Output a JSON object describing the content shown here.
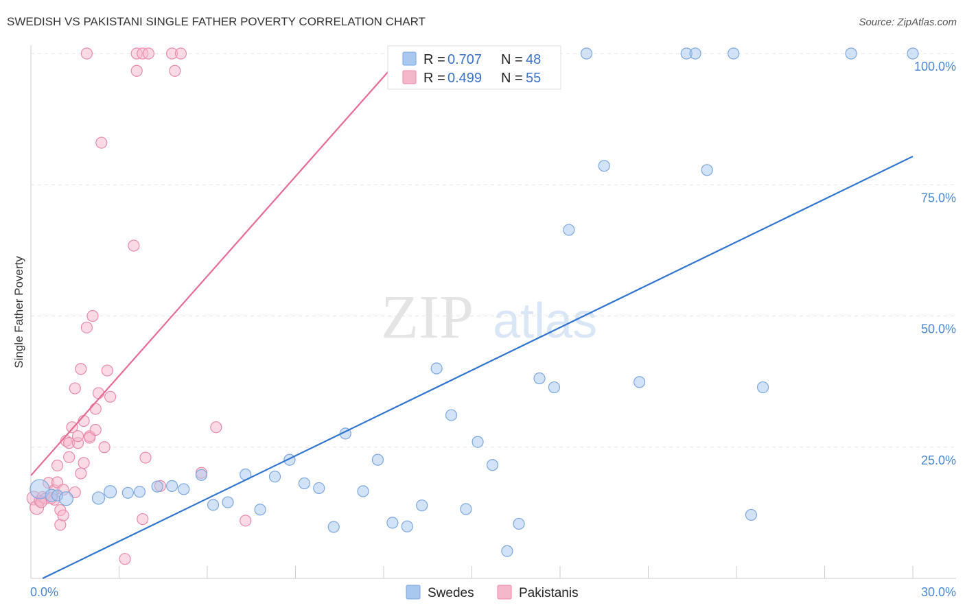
{
  "title": "SWEDISH VS PAKISTANI SINGLE FATHER POVERTY CORRELATION CHART",
  "source": "Source: ZipAtlas.com",
  "watermark": {
    "zip": "ZIP",
    "atlas": "atlas"
  },
  "chart_data": {
    "type": "scatter",
    "xlabel": "",
    "ylabel": "Single Father Poverty",
    "xlim": [
      0,
      30
    ],
    "ylim": [
      0,
      100
    ],
    "x_tick_labels": [
      "0.0%",
      "30.0%"
    ],
    "y_tick_labels": [
      "25.0%",
      "50.0%",
      "75.0%",
      "100.0%"
    ],
    "y_ticks": [
      25,
      50,
      75,
      100
    ],
    "legend": [
      {
        "name": "Swedes",
        "r_label": "R =",
        "r_value": "0.707",
        "n_label": "N =",
        "n_value": "48",
        "color": "#a8c8f0",
        "stroke": "#7aa6df"
      },
      {
        "name": "Pakistanis",
        "r_label": "R =",
        "r_value": "0.499",
        "n_label": "N =",
        "n_value": "55",
        "color": "#f5b8cb",
        "stroke": "#e98aa8"
      }
    ],
    "series": [
      {
        "name": "Swedes",
        "color": "#a8c8f0",
        "stroke": "#7aa6df",
        "line_color": "#2f74d0",
        "trend": [
          [
            0.4,
            0.0
          ],
          [
            30.0,
            80.4
          ]
        ],
        "points": [
          [
            0.3,
            17.0,
            14
          ],
          [
            0.7,
            15.8,
            9
          ],
          [
            0.9,
            15.8,
            8
          ],
          [
            1.2,
            15.2,
            10
          ],
          [
            2.3,
            15.3,
            9
          ],
          [
            2.7,
            16.5,
            9
          ],
          [
            3.3,
            16.3,
            8
          ],
          [
            3.7,
            16.5,
            8
          ],
          [
            4.3,
            17.5,
            8
          ],
          [
            4.8,
            17.6,
            8
          ],
          [
            5.2,
            17.0,
            8
          ],
          [
            5.8,
            19.7,
            8
          ],
          [
            6.2,
            14.0,
            8
          ],
          [
            6.7,
            14.5,
            8
          ],
          [
            7.3,
            19.8,
            8
          ],
          [
            7.8,
            13.1,
            8
          ],
          [
            8.3,
            19.4,
            8
          ],
          [
            8.8,
            22.6,
            8
          ],
          [
            9.3,
            18.1,
            8
          ],
          [
            9.8,
            17.2,
            8
          ],
          [
            10.3,
            9.8,
            8
          ],
          [
            10.7,
            27.6,
            8
          ],
          [
            11.3,
            16.6,
            8
          ],
          [
            11.8,
            22.6,
            8
          ],
          [
            12.3,
            10.6,
            8
          ],
          [
            12.8,
            9.9,
            8
          ],
          [
            13.3,
            13.9,
            8
          ],
          [
            13.8,
            40.0,
            8
          ],
          [
            14.3,
            31.1,
            8
          ],
          [
            14.8,
            13.2,
            8
          ],
          [
            15.2,
            26.0,
            8
          ],
          [
            15.7,
            21.6,
            8
          ],
          [
            16.2,
            5.2,
            8
          ],
          [
            16.6,
            10.4,
            8
          ],
          [
            17.3,
            38.1,
            8
          ],
          [
            17.8,
            36.4,
            8
          ],
          [
            18.3,
            66.4,
            8
          ],
          [
            18.9,
            100.0,
            8
          ],
          [
            19.5,
            78.6,
            8
          ],
          [
            20.7,
            37.4,
            8
          ],
          [
            22.3,
            100.0,
            8
          ],
          [
            22.6,
            100.0,
            8
          ],
          [
            23.0,
            77.8,
            8
          ],
          [
            23.9,
            100.0,
            8
          ],
          [
            24.5,
            12.1,
            8
          ],
          [
            24.9,
            36.4,
            8
          ],
          [
            27.9,
            100.0,
            8
          ],
          [
            30.0,
            100.0,
            8
          ]
        ]
      },
      {
        "name": "Pakistanis",
        "color": "#f5b8cb",
        "stroke": "#e98aa8",
        "line_color": "#e56b91",
        "trend": [
          [
            0.0,
            19.6
          ],
          [
            12.7,
            100.0
          ]
        ],
        "points": [
          [
            0.1,
            15.3,
            10
          ],
          [
            0.2,
            13.5,
            10
          ],
          [
            0.3,
            14.8,
            8
          ],
          [
            0.4,
            15.5,
            8
          ],
          [
            0.5,
            15.2,
            8
          ],
          [
            0.6,
            18.2,
            8
          ],
          [
            0.8,
            16.8,
            8
          ],
          [
            0.8,
            15.0,
            8
          ],
          [
            0.9,
            21.5,
            8
          ],
          [
            0.9,
            18.3,
            8
          ],
          [
            1.0,
            10.2,
            8
          ],
          [
            1.0,
            13.0,
            8
          ],
          [
            1.1,
            12.0,
            8
          ],
          [
            1.2,
            26.2,
            8
          ],
          [
            1.3,
            25.8,
            8
          ],
          [
            1.3,
            23.1,
            8
          ],
          [
            1.4,
            28.8,
            8
          ],
          [
            1.5,
            36.2,
            8
          ],
          [
            1.5,
            16.4,
            8
          ],
          [
            1.6,
            25.8,
            8
          ],
          [
            1.6,
            27.1,
            8
          ],
          [
            1.7,
            20.0,
            8
          ],
          [
            1.7,
            39.9,
            8
          ],
          [
            1.8,
            30.0,
            8
          ],
          [
            1.8,
            22.0,
            8
          ],
          [
            1.9,
            47.8,
            8
          ],
          [
            2.0,
            27.1,
            8
          ],
          [
            2.0,
            26.8,
            8
          ],
          [
            2.1,
            50.0,
            8
          ],
          [
            2.2,
            32.3,
            8
          ],
          [
            2.2,
            28.3,
            8
          ],
          [
            2.3,
            35.3,
            8
          ],
          [
            2.4,
            83.0,
            8
          ],
          [
            2.5,
            25.0,
            8
          ],
          [
            2.6,
            39.6,
            8
          ],
          [
            2.7,
            34.6,
            8
          ],
          [
            3.2,
            3.7,
            8
          ],
          [
            3.5,
            63.4,
            8
          ],
          [
            3.6,
            96.7,
            8
          ],
          [
            3.6,
            100.0,
            8
          ],
          [
            3.8,
            100.0,
            8
          ],
          [
            3.8,
            11.3,
            8
          ],
          [
            3.9,
            23.0,
            8
          ],
          [
            4.0,
            100.0,
            8
          ],
          [
            4.4,
            17.6,
            8
          ],
          [
            4.8,
            100.0,
            8
          ],
          [
            4.9,
            96.7,
            8
          ],
          [
            5.1,
            100.0,
            8
          ],
          [
            5.8,
            20.1,
            8
          ],
          [
            6.3,
            28.8,
            8
          ],
          [
            7.3,
            11.0,
            8
          ],
          [
            1.9,
            100.0,
            8
          ],
          [
            0.35,
            14.5,
            8
          ],
          [
            0.7,
            15.3,
            8
          ],
          [
            1.1,
            16.9,
            8
          ]
        ]
      }
    ]
  }
}
